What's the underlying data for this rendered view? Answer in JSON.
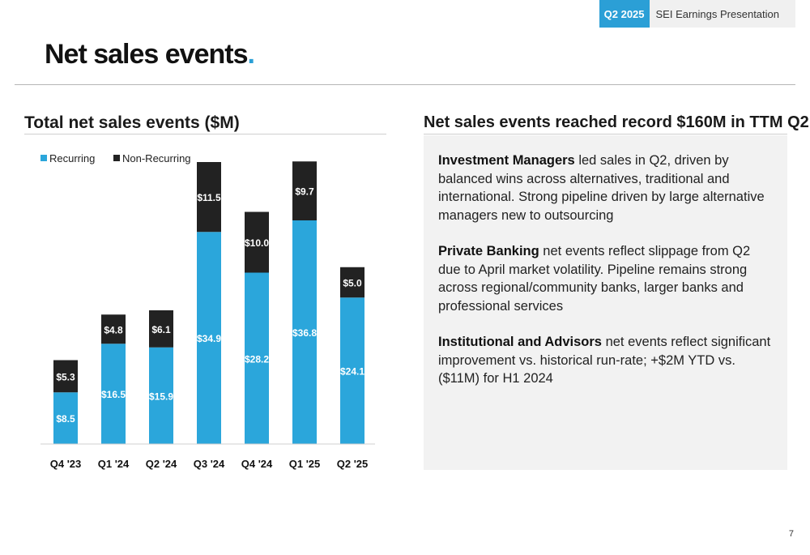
{
  "header": {
    "quarter": "Q2 2025",
    "label": "SEI Earnings Presentation"
  },
  "page_title": "Net sales events",
  "page_title_dot": ".",
  "chart_data": {
    "type": "bar",
    "stacked": true,
    "title": "Total net sales events ($M)",
    "categories": [
      "Q4 '23",
      "Q1 '24",
      "Q2 '24",
      "Q3 '24",
      "Q4 '24",
      "Q1 '25",
      "Q2 '25"
    ],
    "series": [
      {
        "name": "Recurring",
        "color": "#2ba6db",
        "values": [
          8.5,
          16.5,
          15.9,
          34.9,
          28.2,
          36.8,
          24.1
        ]
      },
      {
        "name": "Non-Recurring",
        "color": "#222222",
        "values": [
          5.3,
          4.8,
          6.1,
          11.5,
          10.0,
          9.7,
          5.0
        ]
      }
    ],
    "data_labels": {
      "prefix": "$",
      "Recurring": [
        "$8.5",
        "$16.5",
        "$15.9",
        "$34.9",
        "$28.2",
        "$36.8",
        "$24.1"
      ],
      "Non-Recurring": [
        "$5.3",
        "$4.8",
        "$6.1",
        "$11.5",
        "$10.0",
        "$9.7",
        "$5.0"
      ]
    },
    "legend_position": "top-left",
    "grid": false,
    "ylim": [
      0,
      50
    ]
  },
  "side": {
    "title": "Net sales events reached record $160M in TTM Q2",
    "paragraphs": [
      {
        "bold": "Investment Managers",
        "text": " led sales in Q2, driven by balanced wins across alternatives, traditional and international. Strong pipeline driven by large alternative managers new to outsourcing"
      },
      {
        "bold": "Private Banking",
        "text": " net events reflect slippage from Q2 due to April market volatility. Pipeline remains strong across regional/community banks, larger banks and professional services"
      },
      {
        "bold": "Institutional and Advisors",
        "text": " net events reflect significant improvement vs. historical run-rate; +$2M YTD vs. ($11M) for H1 2024"
      }
    ]
  },
  "page_number": "7"
}
